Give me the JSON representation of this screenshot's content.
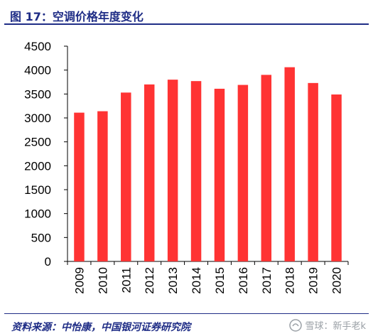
{
  "header": {
    "title": "图 17：空调价格年度变化"
  },
  "footer": {
    "source": "资料来源：中怡康，中国银河证券研究院"
  },
  "watermark": {
    "text": "雪球：新手老k",
    "icon": "snowball-logo-icon"
  },
  "colors": {
    "bar": "#ff3333",
    "accent": "#1f2d86"
  },
  "chart_data": {
    "type": "bar",
    "title": "",
    "xlabel": "",
    "ylabel": "",
    "categories": [
      "2009",
      "2010",
      "2011",
      "2012",
      "2013",
      "2014",
      "2015",
      "2016",
      "2017",
      "2018",
      "2019",
      "2020"
    ],
    "values": [
      3110,
      3140,
      3530,
      3700,
      3800,
      3770,
      3610,
      3690,
      3900,
      4060,
      3730,
      3490
    ],
    "ylim": [
      0,
      4500
    ],
    "yticks": [
      0,
      500,
      1000,
      1500,
      2000,
      2500,
      3000,
      3500,
      4000,
      4500
    ],
    "grid": false,
    "legend": "none"
  }
}
